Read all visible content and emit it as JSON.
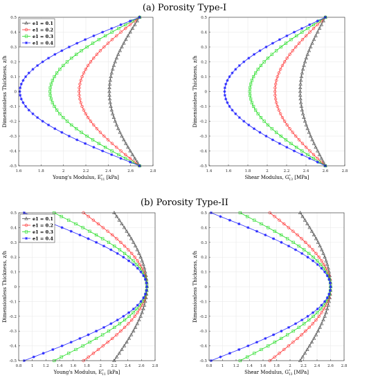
{
  "figure": {
    "section_a_title": "(a) Porosity Type-I",
    "section_b_title": "(b) Porosity Type-II"
  },
  "chart_data": [
    {
      "type": "line",
      "section": "a",
      "xlabel": "Young's Modulus, E",
      "xlabel_sup": "*",
      "xlabel_sub": "11",
      "xlabel_unit": " [kPa]",
      "ylabel": "Dimensionless Thickness, z/h",
      "xlim": [
        1.6,
        2.8
      ],
      "ylim": [
        -0.5,
        0.5
      ],
      "xticks": [
        1.6,
        1.8,
        2,
        2.2,
        2.4,
        2.6,
        2.8
      ],
      "xtick_labels": [
        "1.6",
        "1.8",
        "2",
        "2.2",
        "2.4",
        "2.6",
        "2.8"
      ],
      "yticks": [
        -0.5,
        -0.4,
        -0.3,
        -0.2,
        -0.1,
        0,
        0.1,
        0.2,
        0.3,
        0.4,
        0.5
      ],
      "ytick_labels": [
        "-0.5",
        "-0.4",
        "-0.3",
        "-0.2",
        "-0.1",
        "0",
        "0.1",
        "0.2",
        "0.3",
        "0.4",
        "0.5"
      ],
      "grid": true,
      "legend": "top-left",
      "profile": "type1",
      "E0": 2.68,
      "series": [
        {
          "name": "e1 = 0.1",
          "e1": 0.1,
          "marker": "triangle",
          "color": "#4d4d4d",
          "min_value": 2.41
        },
        {
          "name": "e1 = 0.2",
          "e1": 0.2,
          "marker": "circle",
          "color": "#ff2a2a",
          "min_value": 2.14
        },
        {
          "name": "e1 = 0.3",
          "e1": 0.3,
          "marker": "square",
          "color": "#22dd22",
          "min_value": 1.88
        },
        {
          "name": "e1 = 0.4",
          "e1": 0.4,
          "marker": "asterisk",
          "color": "#2a2aff",
          "min_value": 1.61
        }
      ]
    },
    {
      "type": "line",
      "section": "a",
      "xlabel": "Shear Modulus, G",
      "xlabel_sup": "*",
      "xlabel_sub": "13",
      "xlabel_unit": " [MPa]",
      "ylabel": "Dimensionless Thickness, z/h",
      "xlim": [
        1.4,
        2.8
      ],
      "ylim": [
        -0.5,
        0.5
      ],
      "xticks": [
        1.4,
        1.6,
        1.8,
        2,
        2.2,
        2.4,
        2.6,
        2.8
      ],
      "xtick_labels": [
        "1.4",
        "1.6",
        "1.8",
        "2",
        "2.2",
        "2.4",
        "2.6",
        "2.8"
      ],
      "yticks": [
        -0.5,
        -0.4,
        -0.3,
        -0.2,
        -0.1,
        0,
        0.1,
        0.2,
        0.3,
        0.4,
        0.5
      ],
      "ytick_labels": [
        "-0.5",
        "-0.4",
        "-0.3",
        "-0.2",
        "-0.1",
        "0",
        "0.1",
        "0.2",
        "0.3",
        "0.4",
        "0.5"
      ],
      "grid": true,
      "legend": "none",
      "profile": "type1",
      "E0": 2.6,
      "series": [
        {
          "name": "e1 = 0.1",
          "e1": 0.1,
          "marker": "triangle",
          "color": "#4d4d4d",
          "min_value": 2.34
        },
        {
          "name": "e1 = 0.2",
          "e1": 0.2,
          "marker": "circle",
          "color": "#ff2a2a",
          "min_value": 2.08
        },
        {
          "name": "e1 = 0.3",
          "e1": 0.3,
          "marker": "square",
          "color": "#22dd22",
          "min_value": 1.82
        },
        {
          "name": "e1 = 0.4",
          "e1": 0.4,
          "marker": "asterisk",
          "color": "#2a2aff",
          "min_value": 1.56
        }
      ]
    },
    {
      "type": "line",
      "section": "b",
      "xlabel": "Young's Modulus, E",
      "xlabel_sup": "*",
      "xlabel_sub": "11",
      "xlabel_unit": " [kPa]",
      "ylabel": "Dimensionless Thickness, z/h",
      "xlim": [
        0.8,
        2.8
      ],
      "ylim": [
        -0.5,
        0.5
      ],
      "xticks": [
        0.8,
        1,
        1.2,
        1.4,
        1.6,
        1.8,
        2,
        2.2,
        2.4,
        2.6,
        2.8
      ],
      "xtick_labels": [
        "0.8",
        "1",
        "1.2",
        "1.4",
        "1.6",
        "1.8",
        "2",
        "2.2",
        "2.4",
        "2.6",
        "2.8"
      ],
      "yticks": [
        -0.5,
        -0.4,
        -0.3,
        -0.2,
        -0.1,
        0,
        0.1,
        0.2,
        0.3,
        0.4,
        0.5
      ],
      "ytick_labels": [
        "-0.5",
        "-0.4",
        "-0.3",
        "-0.2",
        "-0.1",
        "0",
        "0.1",
        "0.2",
        "0.3",
        "0.4",
        "0.5"
      ],
      "grid": true,
      "legend": "top-left",
      "profile": "type2",
      "E0": 2.68,
      "series": [
        {
          "name": "e1 = 0.1",
          "e1": 0.1,
          "marker": "triangle",
          "color": "#4d4d4d",
          "edge_value": 2.2
        },
        {
          "name": "e1 = 0.2",
          "e1": 0.2,
          "marker": "circle",
          "color": "#ff2a2a",
          "edge_value": 1.75
        },
        {
          "name": "e1 = 0.3",
          "e1": 0.3,
          "marker": "square",
          "color": "#22dd22",
          "edge_value": 1.32
        },
        {
          "name": "e1 = 0.4",
          "e1": 0.4,
          "marker": "asterisk",
          "color": "#2a2aff",
          "edge_value": 0.88
        }
      ]
    },
    {
      "type": "line",
      "section": "b",
      "xlabel": "Shear Modulus, G",
      "xlabel_sup": "*",
      "xlabel_sub": "13",
      "xlabel_unit": " [MPa]",
      "ylabel": "Dimensionless Thickness, z/h",
      "xlim": [
        0.8,
        2.8
      ],
      "ylim": [
        -0.5,
        0.5
      ],
      "xticks": [
        0.8,
        1,
        1.2,
        1.4,
        1.6,
        1.8,
        2,
        2.2,
        2.4,
        2.6,
        2.8
      ],
      "xtick_labels": [
        "0.8",
        "1",
        "1.2",
        "1.4",
        "1.6",
        "1.8",
        "2",
        "2.2",
        "2.4",
        "2.6",
        "2.8"
      ],
      "yticks": [
        -0.5,
        -0.4,
        -0.3,
        -0.2,
        -0.1,
        0,
        0.1,
        0.2,
        0.3,
        0.4,
        0.5
      ],
      "ytick_labels": [
        "-0.5",
        "-0.4",
        "-0.3",
        "-0.2",
        "-0.1",
        "0",
        "0.1",
        "0.2",
        "0.3",
        "0.4",
        "0.5"
      ],
      "grid": true,
      "legend": "none",
      "profile": "type2",
      "E0": 2.6,
      "series": [
        {
          "name": "e1 = 0.1",
          "e1": 0.1,
          "marker": "triangle",
          "color": "#4d4d4d",
          "edge_value": 2.15
        },
        {
          "name": "e1 = 0.2",
          "e1": 0.2,
          "marker": "circle",
          "color": "#ff2a2a",
          "edge_value": 1.7
        },
        {
          "name": "e1 = 0.3",
          "e1": 0.3,
          "marker": "square",
          "color": "#22dd22",
          "edge_value": 1.26
        },
        {
          "name": "e1 = 0.4",
          "e1": 0.4,
          "marker": "asterisk",
          "color": "#2a2aff",
          "edge_value": 0.83
        }
      ]
    }
  ]
}
